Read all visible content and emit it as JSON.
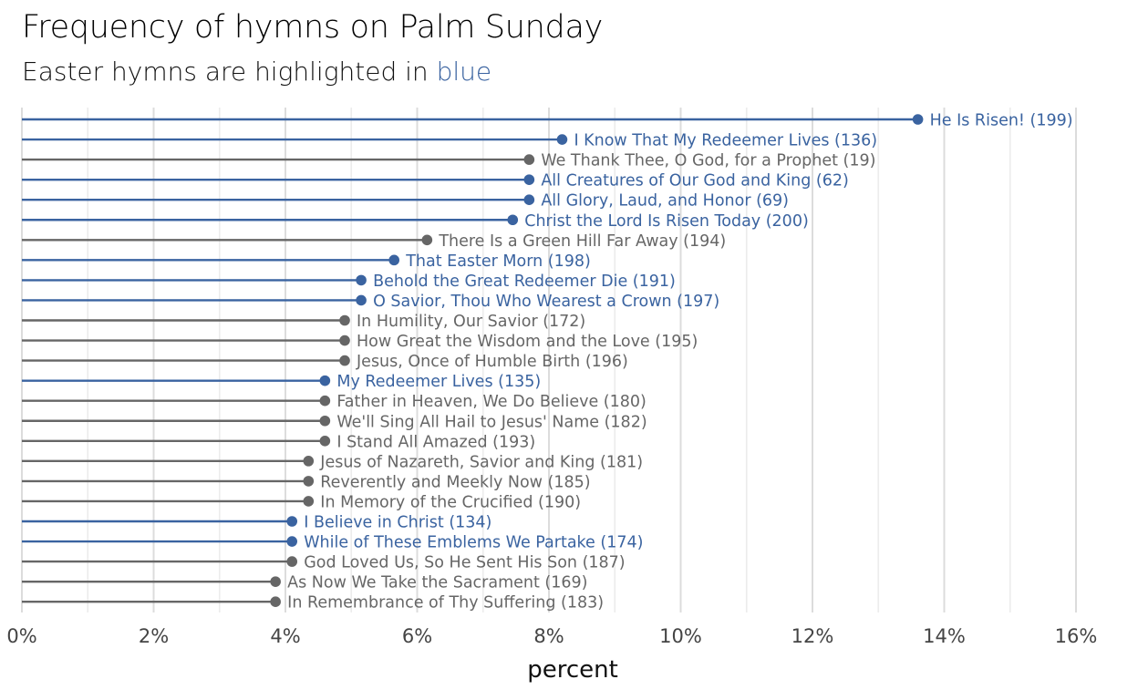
{
  "subtitle": {
    "prefix": "Easter hymns are highlighted in ",
    "accent_word": "blue"
  },
  "colors": {
    "easter": "#3a63a0",
    "other": "#666666",
    "grid_major": "#dcdcdc",
    "grid_minor": "#ececec",
    "axis_text": "#444444"
  },
  "chart_data": {
    "type": "bar",
    "orientation": "horizontal",
    "style": "lollipop",
    "title": "Frequency of hymns on Palm Sunday",
    "xlabel": "percent",
    "ylabel": "",
    "xlim": [
      0,
      16
    ],
    "x_ticks": [
      0,
      2,
      4,
      6,
      8,
      10,
      12,
      14,
      16
    ],
    "x_tick_labels": [
      "0%",
      "2%",
      "4%",
      "6%",
      "8%",
      "10%",
      "12%",
      "14%",
      "16%"
    ],
    "grid": true,
    "legend": "none",
    "series": [
      {
        "items": [
          {
            "label": "He Is Risen! (199)",
            "value": 13.6,
            "easter": true
          },
          {
            "label": "I Know That My Redeemer Lives (136)",
            "value": 8.2,
            "easter": true
          },
          {
            "label": "We Thank Thee, O God, for a Prophet (19)",
            "value": 7.7,
            "easter": false
          },
          {
            "label": "All Creatures of Our God and King (62)",
            "value": 7.7,
            "easter": true
          },
          {
            "label": "All Glory, Laud, and Honor (69)",
            "value": 7.7,
            "easter": true
          },
          {
            "label": "Christ the Lord Is Risen Today (200)",
            "value": 7.45,
            "easter": true
          },
          {
            "label": "There Is a Green Hill Far Away (194)",
            "value": 6.15,
            "easter": false
          },
          {
            "label": "That Easter Morn (198)",
            "value": 5.65,
            "easter": true
          },
          {
            "label": "Behold the Great Redeemer Die (191)",
            "value": 5.15,
            "easter": true
          },
          {
            "label": "O Savior, Thou Who Wearest a Crown (197)",
            "value": 5.15,
            "easter": true
          },
          {
            "label": "In Humility, Our Savior (172)",
            "value": 4.9,
            "easter": false
          },
          {
            "label": "How Great the Wisdom and the Love (195)",
            "value": 4.9,
            "easter": false
          },
          {
            "label": "Jesus, Once of Humble Birth (196)",
            "value": 4.9,
            "easter": false
          },
          {
            "label": "My Redeemer Lives (135)",
            "value": 4.6,
            "easter": true
          },
          {
            "label": "Father in Heaven, We Do Believe (180)",
            "value": 4.6,
            "easter": false
          },
          {
            "label": "We'll Sing All Hail to Jesus' Name (182)",
            "value": 4.6,
            "easter": false
          },
          {
            "label": "I Stand All Amazed (193)",
            "value": 4.6,
            "easter": false
          },
          {
            "label": "Jesus of Nazareth, Savior and King (181)",
            "value": 4.35,
            "easter": false
          },
          {
            "label": "Reverently and Meekly Now (185)",
            "value": 4.35,
            "easter": false
          },
          {
            "label": "In Memory of the Crucified (190)",
            "value": 4.35,
            "easter": false
          },
          {
            "label": "I Believe in Christ (134)",
            "value": 4.1,
            "easter": true
          },
          {
            "label": "While of These Emblems We Partake (174)",
            "value": 4.1,
            "easter": true
          },
          {
            "label": "God Loved Us, So He Sent His Son (187)",
            "value": 4.1,
            "easter": false
          },
          {
            "label": "As Now We Take the Sacrament (169)",
            "value": 3.85,
            "easter": false
          },
          {
            "label": "In Remembrance of Thy Suffering (183)",
            "value": 3.85,
            "easter": false
          }
        ]
      }
    ]
  }
}
